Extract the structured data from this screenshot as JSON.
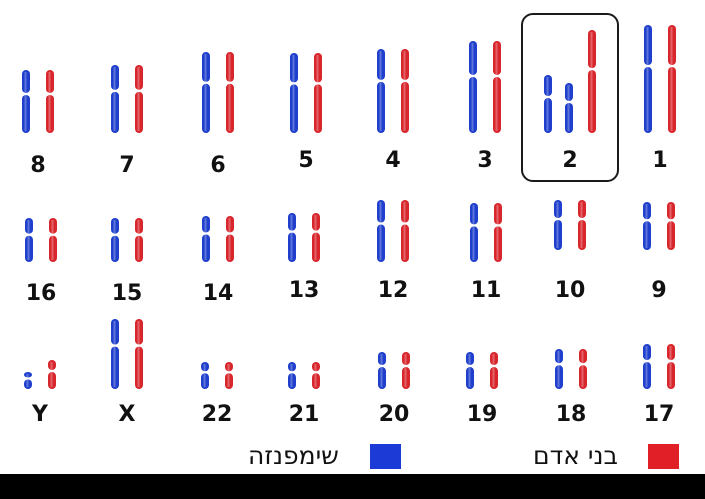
{
  "colors": {
    "chimp": "#1f3fcc",
    "human": "#d8262d"
  },
  "highlight_label": "2",
  "legend": {
    "chimp_label": "שימפנזה",
    "human_label": "בני אדם",
    "chimp_color": "#1c3ad6",
    "human_color": "#e01f26"
  },
  "chromosomes": [
    {
      "label": "1",
      "size": "large"
    },
    {
      "label": "2",
      "size": "large",
      "fused": true
    },
    {
      "label": "3",
      "size": "large"
    },
    {
      "label": "4",
      "size": "large"
    },
    {
      "label": "5",
      "size": "large"
    },
    {
      "label": "6",
      "size": "large"
    },
    {
      "label": "7",
      "size": "medium"
    },
    {
      "label": "8",
      "size": "medium"
    },
    {
      "label": "9",
      "size": "medium"
    },
    {
      "label": "10",
      "size": "medium"
    },
    {
      "label": "11",
      "size": "medium"
    },
    {
      "label": "12",
      "size": "medium"
    },
    {
      "label": "13",
      "size": "small"
    },
    {
      "label": "14",
      "size": "small"
    },
    {
      "label": "15",
      "size": "small"
    },
    {
      "label": "16",
      "size": "small"
    },
    {
      "label": "17",
      "size": "small"
    },
    {
      "label": "18",
      "size": "small"
    },
    {
      "label": "19",
      "size": "small"
    },
    {
      "label": "20",
      "size": "small"
    },
    {
      "label": "21",
      "size": "tiny"
    },
    {
      "label": "22",
      "size": "tiny"
    },
    {
      "label": "X",
      "size": "large"
    },
    {
      "label": "Y",
      "size": "tiny"
    }
  ]
}
